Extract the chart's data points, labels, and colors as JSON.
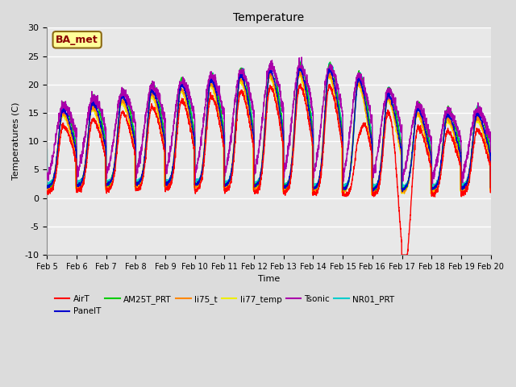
{
  "title": "Temperature",
  "xlabel": "Time",
  "ylabel": "Temperatures (C)",
  "ylim": [
    -10,
    30
  ],
  "xlim": [
    0,
    15
  ],
  "annotation": "BA_met",
  "annotation_color": "#8B0000",
  "annotation_bg": "#FFFF99",
  "fig_facecolor": "#DCDCDC",
  "ax_facecolor": "#E8E8E8",
  "xtick_labels": [
    "Feb 5",
    "Feb 6",
    "Feb 7",
    "Feb 8",
    "Feb 9",
    "Feb 10",
    "Feb 11",
    "Feb 12",
    "Feb 13",
    "Feb 14",
    "Feb 15",
    "Feb 16",
    "Feb 17",
    "Feb 18",
    "Feb 19",
    "Feb 20"
  ],
  "ytick_labels": [
    -10,
    -5,
    0,
    5,
    10,
    15,
    20,
    25,
    30
  ],
  "series_colors": {
    "AirT": "#FF0000",
    "PanelT": "#0000CD",
    "AM25T_PRT": "#00CC00",
    "li75_t": "#FF8800",
    "li77_temp": "#EEEE00",
    "Tsonic": "#AA00AA",
    "NR01_PRT": "#00CCCC"
  }
}
